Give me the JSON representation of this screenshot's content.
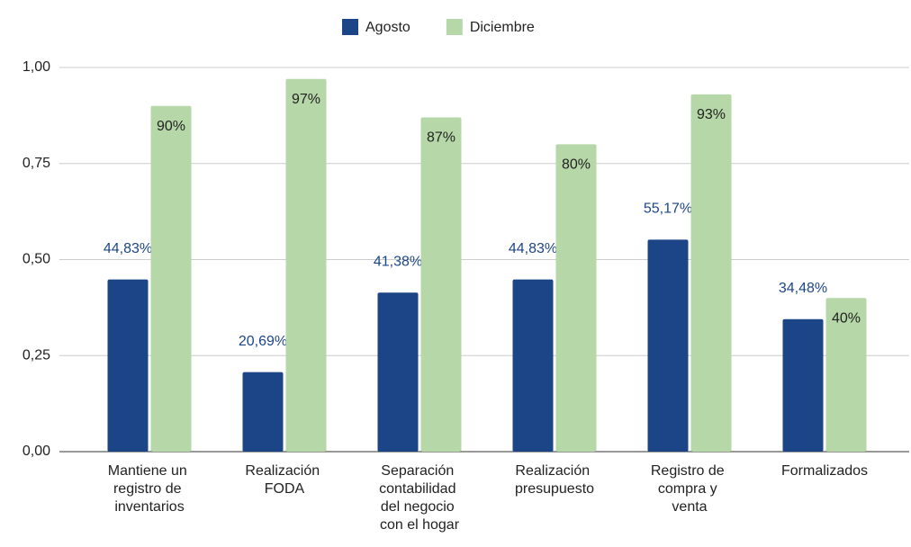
{
  "chart_data": {
    "type": "bar",
    "categories": [
      "Mantiene un registro de inventarios",
      "Realización FODA",
      "Separación contabilidad del negocio con el hogar",
      "Realización presupuesto",
      "Registro de compra y venta",
      "Formalizados"
    ],
    "series": [
      {
        "name": "Agosto",
        "color": "#1c4587",
        "values": [
          0.4483,
          0.2069,
          0.4138,
          0.4483,
          0.5517,
          0.3448
        ],
        "value_labels": [
          "44,83%",
          "20,69%",
          "41,38%",
          "44,83%",
          "55,17%",
          "34,48%"
        ]
      },
      {
        "name": "Diciembre",
        "color": "#b6d7a8",
        "values": [
          0.9,
          0.97,
          0.87,
          0.8,
          0.93,
          0.4
        ],
        "value_labels": [
          "90%",
          "97%",
          "87%",
          "80%",
          "93%",
          "40%"
        ]
      }
    ],
    "ylim": [
      0,
      1
    ],
    "yticks": [
      {
        "value": 0,
        "label": "0,00"
      },
      {
        "value": 0.25,
        "label": "0,25"
      },
      {
        "value": 0.5,
        "label": "0,50"
      },
      {
        "value": 0.75,
        "label": "0,75"
      },
      {
        "value": 1,
        "label": "1,00"
      }
    ],
    "grid": true,
    "legend": "top"
  }
}
